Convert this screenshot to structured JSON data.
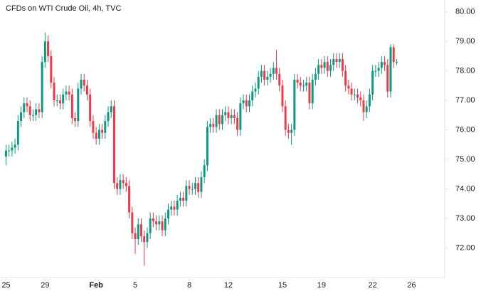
{
  "chart_data": {
    "type": "candlestick",
    "title": "CFDs on WTI Crude Oil, 4h, TVC",
    "up_color": "#089981",
    "down_color": "#f23645",
    "grid": false,
    "xlim": [
      -2,
      146
    ],
    "ylim": [
      71,
      80.4
    ],
    "xticks": [
      {
        "value": 0,
        "label": "25"
      },
      {
        "value": 13,
        "label": "29"
      },
      {
        "value": 30,
        "label": "Feb"
      },
      {
        "value": 43,
        "label": "5"
      },
      {
        "value": 61,
        "label": "8"
      },
      {
        "value": 74,
        "label": "12"
      },
      {
        "value": 92,
        "label": "15"
      },
      {
        "value": 105,
        "label": "19"
      },
      {
        "value": 122,
        "label": "22"
      },
      {
        "value": 135,
        "label": "26"
      }
    ],
    "yticks": [
      {
        "value": 72,
        "label": "72.00"
      },
      {
        "value": 73,
        "label": "73.00"
      },
      {
        "value": 74,
        "label": "74.00"
      },
      {
        "value": 75,
        "label": "75.00"
      },
      {
        "value": 76,
        "label": "76.00"
      },
      {
        "value": 77,
        "label": "77.00"
      },
      {
        "value": 78,
        "label": "78.00"
      },
      {
        "value": 79,
        "label": "79.00"
      },
      {
        "value": 80,
        "label": "80.00"
      }
    ],
    "open": [
      75.1,
      75.3,
      75.3,
      75.4,
      75.5,
      76.3,
      76.6,
      76.9,
      76.8,
      76.5,
      76.5,
      76.7,
      76.6,
      78.3,
      79.0,
      78.5,
      77.6,
      77.0,
      77.0,
      76.9,
      77.2,
      77.3,
      77.2,
      76.4,
      76.3,
      77.4,
      77.7,
      77.5,
      77.2,
      76.3,
      75.9,
      75.7,
      76.0,
      75.9,
      76.3,
      76.6,
      76.8,
      74.2,
      74.0,
      74.3,
      74.2,
      74.1,
      73.2,
      72.5,
      72.3,
      72.8,
      72.4,
      72.2,
      72.5,
      73.0,
      72.9,
      72.8,
      72.9,
      72.6,
      73.0,
      73.3,
      73.4,
      73.3,
      73.6,
      73.7,
      73.6,
      74.1,
      74.0,
      74.0,
      74.2,
      73.9,
      74.4,
      74.8,
      76.1,
      76.2,
      76.1,
      76.5,
      76.2,
      76.5,
      76.6,
      76.4,
      76.5,
      76.4,
      76.0,
      76.9,
      77.0,
      76.8,
      77.0,
      77.3,
      77.4,
      77.8,
      78.0,
      77.7,
      77.8,
      77.9,
      78.1,
      77.9,
      77.5,
      76.8,
      76.0,
      75.9,
      76.0,
      77.7,
      77.6,
      77.5,
      77.5,
      77.6,
      76.9,
      77.7,
      77.9,
      78.2,
      78.1,
      78.3,
      78.0,
      78.2,
      78.4,
      78.3,
      78.4,
      78.0,
      77.5,
      77.4,
      77.2,
      77.2,
      77.1,
      77.0,
      76.6,
      76.8,
      77.2,
      78.0,
      78.0,
      78.1,
      78.3,
      78.2,
      77.3,
      78.8,
      78.3
    ],
    "high": [
      75.5,
      75.5,
      75.6,
      75.7,
      76.5,
      76.8,
      77.1,
      77.1,
      77.0,
      76.7,
      76.9,
      76.9,
      78.5,
      79.3,
      79.2,
      78.7,
      77.8,
      77.2,
      77.2,
      77.4,
      77.5,
      77.5,
      77.4,
      76.6,
      77.6,
      77.9,
      77.9,
      77.7,
      77.4,
      76.5,
      76.1,
      76.2,
      76.2,
      76.5,
      76.8,
      77.0,
      77.0,
      74.4,
      74.5,
      74.5,
      74.4,
      74.3,
      73.4,
      72.7,
      73.0,
      73.0,
      72.6,
      72.7,
      73.2,
      73.2,
      73.1,
      73.1,
      73.1,
      73.2,
      73.5,
      73.6,
      73.6,
      73.8,
      73.9,
      73.9,
      74.3,
      74.3,
      74.2,
      74.4,
      74.4,
      74.6,
      75.0,
      76.3,
      76.4,
      76.4,
      76.7,
      76.7,
      76.7,
      76.8,
      76.8,
      76.7,
      76.7,
      76.6,
      77.1,
      77.2,
      77.2,
      77.2,
      77.5,
      77.6,
      78.0,
      78.2,
      78.2,
      78.0,
      78.1,
      78.3,
      78.7,
      78.1,
      77.7,
      77.0,
      76.2,
      76.2,
      77.9,
      77.9,
      77.8,
      77.7,
      77.8,
      77.8,
      77.9,
      78.1,
      78.4,
      78.4,
      78.5,
      78.5,
      78.4,
      78.6,
      78.6,
      78.6,
      78.6,
      78.2,
      77.7,
      77.6,
      77.4,
      77.4,
      77.3,
      77.2,
      77.0,
      77.4,
      78.2,
      78.2,
      78.3,
      78.5,
      78.5,
      78.4,
      78.9,
      78.9,
      78.4
    ],
    "low": [
      74.8,
      75.1,
      75.1,
      75.2,
      75.3,
      76.1,
      76.4,
      76.6,
      76.3,
      76.3,
      76.3,
      76.4,
      76.4,
      78.1,
      78.3,
      77.4,
      76.8,
      76.8,
      76.7,
      76.7,
      77.0,
      77.0,
      76.2,
      76.1,
      76.1,
      77.2,
      77.3,
      77.0,
      76.1,
      75.7,
      75.5,
      75.5,
      75.7,
      75.7,
      76.1,
      76.4,
      74.0,
      73.8,
      73.8,
      74.0,
      73.9,
      73.0,
      72.3,
      71.8,
      72.1,
      72.2,
      71.4,
      72.0,
      72.3,
      72.7,
      72.6,
      72.6,
      72.4,
      72.4,
      72.8,
      73.1,
      73.1,
      73.1,
      73.4,
      73.4,
      73.4,
      73.8,
      73.8,
      73.8,
      73.7,
      73.7,
      74.2,
      74.6,
      75.9,
      75.9,
      75.9,
      76.0,
      76.0,
      76.3,
      76.2,
      76.2,
      76.2,
      75.8,
      75.8,
      76.7,
      76.6,
      76.6,
      76.8,
      77.1,
      77.2,
      77.6,
      77.5,
      77.5,
      77.6,
      77.7,
      77.7,
      77.3,
      76.6,
      75.8,
      75.7,
      75.5,
      75.8,
      77.4,
      77.3,
      77.3,
      77.3,
      76.7,
      76.7,
      77.5,
      77.7,
      77.9,
      77.9,
      77.8,
      77.8,
      78.0,
      78.1,
      78.1,
      77.8,
      77.3,
      77.2,
      77.0,
      77.0,
      76.9,
      76.8,
      76.3,
      76.4,
      76.6,
      77.0,
      77.8,
      77.8,
      77.9,
      78.0,
      77.1,
      77.1,
      78.1,
      78.2
    ],
    "close": [
      75.3,
      75.3,
      75.4,
      75.5,
      76.3,
      76.6,
      76.9,
      76.8,
      76.5,
      76.5,
      76.7,
      76.6,
      78.3,
      79.0,
      78.5,
      77.6,
      77.0,
      77.0,
      76.9,
      77.2,
      77.3,
      77.2,
      76.4,
      76.3,
      77.4,
      77.7,
      77.5,
      77.2,
      76.3,
      75.9,
      75.7,
      76.0,
      75.9,
      76.3,
      76.6,
      76.8,
      74.2,
      74.0,
      74.3,
      74.2,
      74.1,
      73.2,
      72.5,
      72.3,
      72.8,
      72.4,
      72.2,
      72.5,
      73.0,
      72.9,
      72.8,
      72.9,
      72.6,
      73.0,
      73.3,
      73.4,
      73.3,
      73.6,
      73.7,
      73.6,
      74.1,
      74.0,
      74.0,
      74.2,
      73.9,
      74.4,
      74.8,
      76.1,
      76.2,
      76.1,
      76.5,
      76.2,
      76.5,
      76.6,
      76.4,
      76.5,
      76.4,
      76.0,
      76.9,
      77.0,
      76.8,
      77.0,
      77.3,
      77.4,
      77.8,
      78.0,
      77.7,
      77.8,
      77.9,
      78.1,
      77.9,
      77.5,
      76.8,
      76.0,
      75.9,
      76.0,
      77.7,
      77.6,
      77.5,
      77.5,
      77.6,
      76.9,
      77.7,
      77.9,
      78.2,
      78.1,
      78.3,
      78.0,
      78.2,
      78.4,
      78.3,
      78.4,
      78.0,
      77.5,
      77.4,
      77.2,
      77.2,
      77.1,
      77.0,
      76.6,
      76.8,
      77.2,
      78.0,
      78.0,
      78.1,
      78.3,
      78.2,
      77.3,
      78.8,
      78.3,
      78.3
    ]
  }
}
